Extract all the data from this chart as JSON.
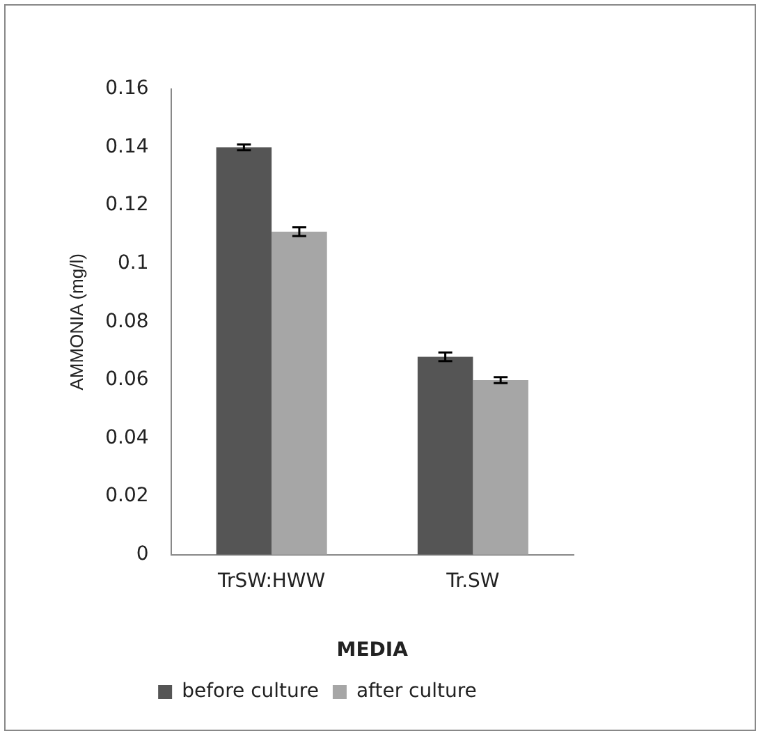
{
  "chart_data": {
    "type": "bar",
    "xlabel": "MEDIA",
    "ylabel": "AMMONIA (mg/l)",
    "categories": [
      "TrSW:HWW",
      "Tr.SW"
    ],
    "series": [
      {
        "name": "before culture",
        "color": "#555555",
        "values": [
          0.14,
          0.068
        ],
        "errors": [
          0.001,
          0.0015
        ]
      },
      {
        "name": "after culture",
        "color": "#a6a6a6",
        "values": [
          0.111,
          0.06
        ],
        "errors": [
          0.0015,
          0.001
        ]
      }
    ],
    "ylim": [
      0,
      0.16
    ],
    "yticks": [
      {
        "value": 0,
        "label": "0"
      },
      0.02,
      0.04,
      0.06,
      0.08,
      {
        "value": 0.1,
        "label": "0.1"
      },
      0.12,
      0.14,
      0.16
    ],
    "grid": false,
    "legend": "bottom"
  }
}
